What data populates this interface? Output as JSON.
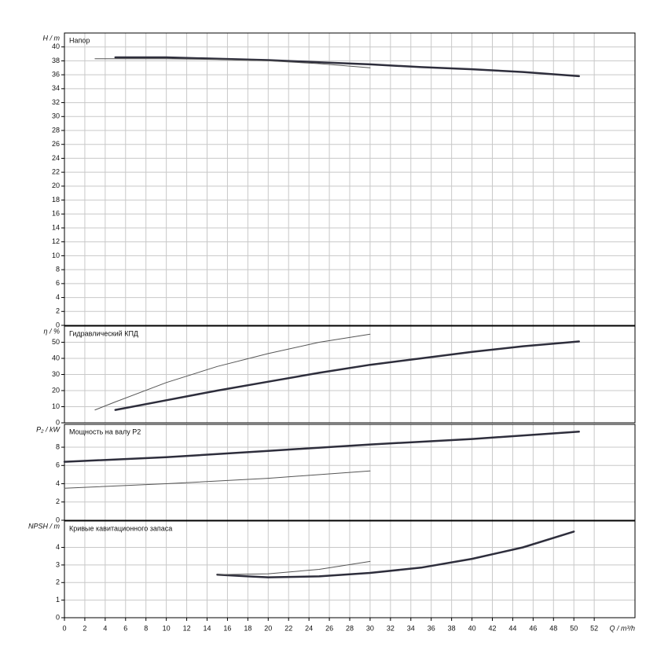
{
  "chart_data": [
    {
      "type": "line",
      "ylabel": "H / m",
      "title": "Напор",
      "ylim": [
        0,
        42
      ],
      "yticks": [
        0,
        2,
        4,
        6,
        8,
        10,
        12,
        14,
        16,
        18,
        20,
        22,
        24,
        26,
        28,
        30,
        32,
        34,
        36,
        38,
        40
      ],
      "grid": true,
      "series": [
        {
          "color": "#2e2e3c",
          "width": 2.5,
          "x": [
            5,
            10,
            15,
            20,
            25,
            30,
            35,
            40,
            45,
            50.5
          ],
          "values": [
            38.5,
            38.5,
            38.3,
            38.1,
            37.8,
            37.5,
            37.1,
            36.8,
            36.4,
            35.8
          ]
        },
        {
          "color": "#555555",
          "width": 1,
          "x": [
            3,
            10,
            15,
            20,
            25,
            30
          ],
          "values": [
            38.3,
            38.3,
            38.2,
            38.0,
            37.6,
            37.0
          ]
        }
      ]
    },
    {
      "type": "line",
      "ylabel": "η / %",
      "title": "Гидравлический КПД",
      "ylim": [
        0,
        60
      ],
      "yticks": [
        0,
        10,
        20,
        30,
        40,
        50
      ],
      "grid": true,
      "series": [
        {
          "color": "#2e2e3c",
          "width": 2.5,
          "x": [
            5,
            10,
            15,
            20,
            25,
            30,
            35,
            40,
            45,
            50.5
          ],
          "values": [
            8,
            14,
            20,
            25.5,
            31,
            36,
            40,
            44,
            47.5,
            50.5
          ]
        },
        {
          "color": "#555555",
          "width": 1,
          "x": [
            3,
            5,
            10,
            15,
            20,
            25,
            30
          ],
          "values": [
            8,
            13,
            25,
            35,
            43,
            50,
            55
          ]
        }
      ]
    },
    {
      "type": "line",
      "ylabel": "P₂ / kW",
      "title": "Мощность на валу P2",
      "ylim": [
        0,
        10.5
      ],
      "yticks": [
        0,
        2,
        4,
        6,
        8
      ],
      "grid": true,
      "series": [
        {
          "color": "#2e2e3c",
          "width": 2.5,
          "x": [
            0,
            10,
            20,
            30,
            40,
            50.5
          ],
          "values": [
            6.4,
            6.9,
            7.6,
            8.3,
            8.9,
            9.7
          ]
        },
        {
          "color": "#555555",
          "width": 1,
          "x": [
            0,
            10,
            20,
            30
          ],
          "values": [
            3.5,
            4.0,
            4.6,
            5.4
          ]
        }
      ]
    },
    {
      "type": "line",
      "ylabel": "NPSH / m",
      "title": "Кривые кавитационного запаса",
      "ylim": [
        0,
        5.5
      ],
      "yticks": [
        0,
        1,
        2,
        3,
        4
      ],
      "grid": true,
      "xlabel": "Q / m³/h",
      "xlim": [
        0,
        56
      ],
      "xticks": [
        0,
        2,
        4,
        6,
        8,
        10,
        12,
        14,
        16,
        18,
        20,
        22,
        24,
        26,
        28,
        30,
        32,
        34,
        36,
        38,
        40,
        42,
        44,
        46,
        48,
        50,
        52
      ],
      "series": [
        {
          "color": "#2e2e3c",
          "width": 2.5,
          "x": [
            15,
            18,
            20,
            25,
            30,
            35,
            40,
            45,
            50
          ],
          "values": [
            2.45,
            2.35,
            2.3,
            2.35,
            2.55,
            2.85,
            3.35,
            4.0,
            4.9
          ]
        },
        {
          "color": "#555555",
          "width": 1,
          "x": [
            15,
            20,
            25,
            30
          ],
          "values": [
            2.45,
            2.5,
            2.75,
            3.2
          ]
        }
      ]
    }
  ]
}
